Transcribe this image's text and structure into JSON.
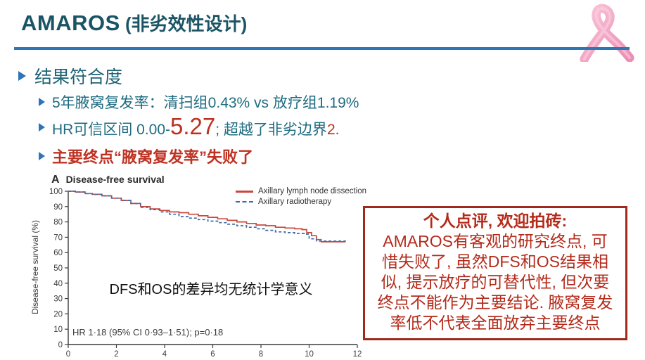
{
  "slide": {
    "title_main": "AMAROS",
    "title_sub": " (非劣效性设计)",
    "bullets": {
      "level1": "结果符合度",
      "item1": "5年腋窝复发率：清扫组0.43% vs 放疗组1.19%",
      "item2_part1": "HR可信区间 0.00-",
      "item2_big": "5.27",
      "item2_part2": "; 超越了非劣边界",
      "item2_part3": "2.",
      "item3": "主要终点“腋窝复发率”失败了"
    },
    "comment_box": {
      "heading": "个人点评, 欢迎拍砖:",
      "body": "AMAROS有客观的研究终点, 可\n惜失败了, 虽然DFS和OS结果相\n似, 提示放疗的可替代性, 但次要\n终点不能作为主要结论. 腋窝复发\n率低不代表全面放弃主要终点"
    },
    "icons": {
      "ribbon": "pink-awareness-ribbon"
    }
  },
  "colors": {
    "title": "#1b5565",
    "rule_blue": "#2f76b5",
    "bullet_blue": "#2e75b6",
    "body_teal": "#1f6b80",
    "red_text": "#bd3020",
    "box_border": "#9e291c",
    "box_text": "#b42a1a",
    "curve_red": "#c9473d",
    "curve_blue": "#3c6ba5",
    "ribbon_pink": "#f2a7c6"
  },
  "chart_data": {
    "type": "line",
    "subtype": "kaplan-meier-step",
    "panel_label": "A",
    "title": "Disease-free survival",
    "ylabel": "Disease-free survival (%)",
    "xlabel": "",
    "xlim": [
      0,
      12
    ],
    "ylim": [
      0,
      100
    ],
    "xticks": [
      0,
      2,
      4,
      6,
      8,
      10,
      12
    ],
    "yticks": [
      0,
      10,
      20,
      30,
      40,
      50,
      60,
      70,
      80,
      90,
      100
    ],
    "grid": false,
    "legend_position": "top-right-inside",
    "stat_annotation": "HR 1·18 (95% CI 0·93–1·51); p=0·18",
    "overlay_note": "DFS和OS的差异均无统计学意义",
    "series": [
      {
        "name": "Axillary lymph node dissection",
        "color": "#c9473d",
        "style": "solid",
        "x": [
          0,
          0.3,
          0.7,
          1.0,
          1.4,
          1.8,
          2.2,
          2.6,
          3.0,
          3.4,
          3.8,
          4.2,
          4.6,
          5.0,
          5.4,
          5.8,
          6.2,
          6.6,
          7.0,
          7.4,
          7.8,
          8.2,
          8.6,
          9.0,
          9.4,
          9.7,
          9.9,
          10.1,
          10.3,
          10.5,
          11.5
        ],
        "y": [
          100,
          99.5,
          98.5,
          98,
          97,
          95.5,
          94,
          92,
          90,
          88.5,
          87.5,
          86.5,
          86,
          85,
          84,
          83,
          82,
          81,
          80,
          79,
          78,
          77.5,
          76.5,
          76,
          75.5,
          75,
          73,
          71,
          68.5,
          67,
          67
        ]
      },
      {
        "name": "Axillary radiotherapy",
        "color": "#3c6ba5",
        "style": "dashed",
        "x": [
          0,
          0.3,
          0.7,
          1.0,
          1.4,
          1.8,
          2.2,
          2.6,
          3.0,
          3.4,
          3.8,
          4.2,
          4.6,
          5.0,
          5.4,
          5.8,
          6.2,
          6.6,
          7.0,
          7.4,
          7.8,
          8.2,
          8.6,
          9.0,
          9.4,
          9.8,
          10.0,
          10.3,
          11.5
        ],
        "y": [
          100,
          99.5,
          98.5,
          98,
          97,
          95.5,
          94,
          92,
          89.5,
          88,
          86.5,
          85,
          83.5,
          82.5,
          81.5,
          80.5,
          79.5,
          78.5,
          77.5,
          76.5,
          75.5,
          74.5,
          73.5,
          73,
          72.5,
          72,
          69,
          67.5,
          67
        ]
      }
    ]
  }
}
